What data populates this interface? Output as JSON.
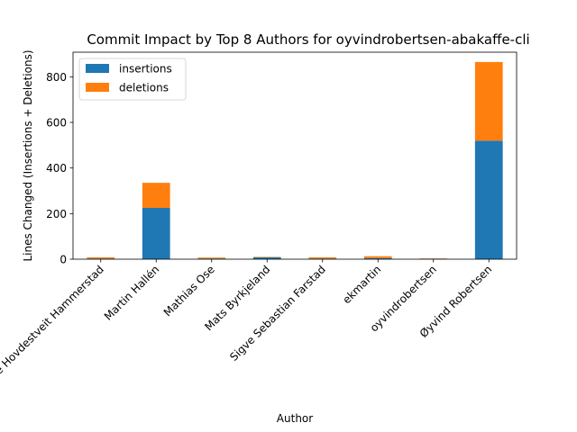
{
  "chart_data": {
    "type": "bar",
    "stacked": true,
    "title": "Commit Impact by Top 8 Authors for oyvindrobertsen-abakaffe-cli",
    "xlabel": "Author",
    "ylabel": "Lines Changed (Insertions + Deletions)",
    "categories": [
      "Ådne Hovdestveit Hammerstad",
      "Martin Hallén",
      "Mathias Ose",
      "Mats Byrkjeland",
      "Sigve Sebastian Farstad",
      "ekmartin",
      "oyvindrobertsen",
      "Øyvind Robertsen"
    ],
    "series": [
      {
        "name": "insertions",
        "color": "#1f77b4",
        "values": [
          3,
          225,
          3,
          8,
          3,
          5,
          2,
          520
        ]
      },
      {
        "name": "deletions",
        "color": "#ff7f0e",
        "values": [
          5,
          110,
          4,
          2,
          5,
          8,
          1,
          345
        ]
      }
    ],
    "ylim": [
      0,
      908
    ],
    "yticks": [
      0,
      200,
      400,
      600,
      800
    ],
    "legend_position": "top-left",
    "grid": false
  }
}
